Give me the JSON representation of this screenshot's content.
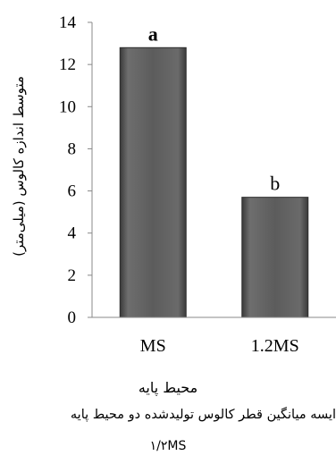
{
  "chart_data": {
    "type": "bar",
    "categories": [
      "MS",
      "1.2MS"
    ],
    "values": [
      12.8,
      5.7
    ],
    "data_labels": [
      "a",
      "b"
    ],
    "ylim": [
      0,
      14
    ],
    "yticks": [
      0,
      2,
      4,
      6,
      8,
      10,
      12,
      14
    ],
    "ytick_labels": [
      "0",
      "2",
      "4",
      "6",
      "8",
      "10",
      "12",
      "14"
    ],
    "ylabel": "متوسط اندازه کالوس (میلی‌متر)",
    "xlabel": "محیط پایه",
    "grid": false,
    "legend": "none",
    "bar_color": "#5a5a5a"
  },
  "caption": {
    "line1": "ایسه میانگین قطر کالوس تولیدشده دو محیط پایه",
    "line2": "۱/۲MS"
  }
}
